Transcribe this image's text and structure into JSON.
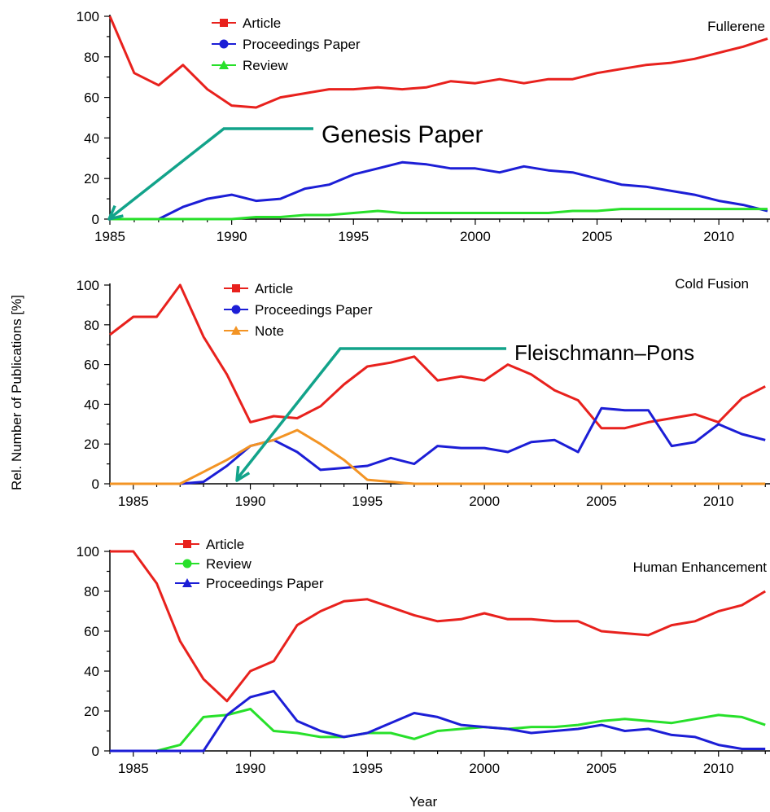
{
  "figure": {
    "ylabel": "Rel. Number of Publications [%]",
    "xlabel": "Year"
  },
  "chart_data": [
    {
      "type": "line",
      "title": "Fullerene",
      "xlim": [
        1985,
        2012
      ],
      "ylim": [
        0,
        100
      ],
      "x_ticks": [
        1985,
        1990,
        1995,
        2000,
        2005,
        2010
      ],
      "y_ticks": [
        0,
        20,
        40,
        60,
        80,
        100
      ],
      "legend_position": "top-left",
      "series": [
        {
          "name": "Article",
          "color": "#e8211d",
          "marker": "square",
          "x": [
            1985,
            1986,
            1987,
            1988,
            1989,
            1990,
            1991,
            1992,
            1993,
            1994,
            1995,
            1996,
            1997,
            1998,
            1999,
            2000,
            2001,
            2002,
            2003,
            2004,
            2005,
            2006,
            2007,
            2008,
            2009,
            2010,
            2011,
            2012
          ],
          "values": [
            100,
            72,
            66,
            76,
            64,
            56,
            55,
            60,
            62,
            64,
            64,
            65,
            64,
            65,
            68,
            67,
            69,
            67,
            69,
            69,
            72,
            74,
            76,
            77,
            79,
            82,
            85,
            89
          ]
        },
        {
          "name": "Proceedings Paper",
          "color": "#1c1ed6",
          "marker": "circle",
          "x": [
            1985,
            1986,
            1987,
            1988,
            1989,
            1990,
            1991,
            1992,
            1993,
            1994,
            1995,
            1996,
            1997,
            1998,
            1999,
            2000,
            2001,
            2002,
            2003,
            2004,
            2005,
            2006,
            2007,
            2008,
            2009,
            2010,
            2011,
            2012
          ],
          "values": [
            0,
            0,
            0,
            6,
            10,
            12,
            9,
            10,
            15,
            17,
            22,
            25,
            28,
            27,
            25,
            25,
            23,
            26,
            24,
            23,
            20,
            17,
            16,
            14,
            12,
            9,
            7,
            4
          ]
        },
        {
          "name": "Review",
          "color": "#27e02a",
          "marker": "triangle",
          "x": [
            1985,
            1986,
            1987,
            1988,
            1989,
            1990,
            1991,
            1992,
            1993,
            1994,
            1995,
            1996,
            1997,
            1998,
            1999,
            2000,
            2001,
            2002,
            2003,
            2004,
            2005,
            2006,
            2007,
            2008,
            2009,
            2010,
            2011,
            2012
          ],
          "values": [
            0,
            0,
            0,
            0,
            0,
            0,
            1,
            1,
            2,
            2,
            3,
            4,
            3,
            3,
            3,
            3,
            3,
            3,
            3,
            4,
            4,
            5,
            5,
            5,
            5,
            5,
            5,
            5
          ]
        }
      ],
      "annotation": {
        "text": "Genesis Paper",
        "target_x": 1985,
        "target_y": 0
      }
    },
    {
      "type": "line",
      "title": "Cold Fusion",
      "xlim": [
        1984,
        2012
      ],
      "ylim": [
        0,
        100
      ],
      "x_ticks": [
        1985,
        1990,
        1995,
        2000,
        2005,
        2010
      ],
      "y_ticks": [
        0,
        20,
        40,
        60,
        80,
        100
      ],
      "legend_position": "top-left",
      "series": [
        {
          "name": "Article",
          "color": "#e8211d",
          "marker": "square",
          "x": [
            1984,
            1985,
            1986,
            1987,
            1988,
            1989,
            1990,
            1991,
            1992,
            1993,
            1994,
            1995,
            1996,
            1997,
            1998,
            1999,
            2000,
            2001,
            2002,
            2003,
            2004,
            2005,
            2006,
            2007,
            2008,
            2009,
            2010,
            2011,
            2012
          ],
          "values": [
            75,
            84,
            84,
            100,
            74,
            55,
            31,
            34,
            33,
            39,
            50,
            59,
            61,
            64,
            52,
            54,
            52,
            60,
            55,
            47,
            42,
            28,
            28,
            31,
            33,
            35,
            31,
            43,
            49
          ]
        },
        {
          "name": "Proceedings Paper",
          "color": "#1c1ed6",
          "marker": "circle",
          "x": [
            1984,
            1985,
            1986,
            1987,
            1988,
            1989,
            1990,
            1991,
            1992,
            1993,
            1994,
            1995,
            1996,
            1997,
            1998,
            1999,
            2000,
            2001,
            2002,
            2003,
            2004,
            2005,
            2006,
            2007,
            2008,
            2009,
            2010,
            2011,
            2012
          ],
          "values": [
            0,
            0,
            0,
            0,
            1,
            9,
            19,
            22,
            16,
            7,
            8,
            9,
            13,
            10,
            19,
            18,
            18,
            16,
            21,
            22,
            16,
            38,
            37,
            37,
            19,
            21,
            30,
            25,
            22
          ]
        },
        {
          "name": "Note",
          "color": "#f39424",
          "marker": "triangle",
          "x": [
            1984,
            1985,
            1986,
            1987,
            1988,
            1989,
            1990,
            1991,
            1992,
            1993,
            1994,
            1995,
            1996,
            1997,
            1998,
            1999,
            2000,
            2001,
            2002,
            2003,
            2004,
            2005,
            2006,
            2007,
            2008,
            2009,
            2010,
            2011,
            2012
          ],
          "values": [
            0,
            0,
            0,
            0,
            6,
            12,
            19,
            22,
            27,
            20,
            12,
            2,
            1,
            0,
            0,
            0,
            0,
            0,
            0,
            0,
            0,
            0,
            0,
            0,
            0,
            0,
            0,
            0,
            0
          ]
        }
      ],
      "annotation": {
        "text": "Fleischmann–Pons",
        "target_x": 1989,
        "target_y": 0
      }
    },
    {
      "type": "line",
      "title": "Human Enhancement",
      "xlim": [
        1984,
        2012
      ],
      "ylim": [
        0,
        100
      ],
      "x_ticks": [
        1985,
        1990,
        1995,
        2000,
        2005,
        2010
      ],
      "y_ticks": [
        0,
        20,
        40,
        60,
        80,
        100
      ],
      "legend_position": "top-left",
      "series": [
        {
          "name": "Article",
          "color": "#e8211d",
          "marker": "square",
          "x": [
            1984,
            1985,
            1986,
            1987,
            1988,
            1989,
            1990,
            1991,
            1992,
            1993,
            1994,
            1995,
            1996,
            1997,
            1998,
            1999,
            2000,
            2001,
            2002,
            2003,
            2004,
            2005,
            2006,
            2007,
            2008,
            2009,
            2010,
            2011,
            2012
          ],
          "values": [
            100,
            100,
            84,
            55,
            36,
            25,
            40,
            45,
            63,
            70,
            75,
            76,
            72,
            68,
            65,
            66,
            69,
            66,
            66,
            65,
            65,
            60,
            59,
            58,
            63,
            65,
            70,
            73,
            80
          ]
        },
        {
          "name": "Review",
          "color": "#27e02a",
          "marker": "circle",
          "x": [
            1984,
            1985,
            1986,
            1987,
            1988,
            1989,
            1990,
            1991,
            1992,
            1993,
            1994,
            1995,
            1996,
            1997,
            1998,
            1999,
            2000,
            2001,
            2002,
            2003,
            2004,
            2005,
            2006,
            2007,
            2008,
            2009,
            2010,
            2011,
            2012
          ],
          "values": [
            0,
            0,
            0,
            3,
            17,
            18,
            21,
            10,
            9,
            7,
            7,
            9,
            9,
            6,
            10,
            11,
            12,
            11,
            12,
            12,
            13,
            15,
            16,
            15,
            14,
            16,
            18,
            17,
            13
          ]
        },
        {
          "name": "Proceedings Paper",
          "color": "#1c1ed6",
          "marker": "triangle",
          "x": [
            1984,
            1985,
            1986,
            1987,
            1988,
            1989,
            1990,
            1991,
            1992,
            1993,
            1994,
            1995,
            1996,
            1997,
            1998,
            1999,
            2000,
            2001,
            2002,
            2003,
            2004,
            2005,
            2006,
            2007,
            2008,
            2009,
            2010,
            2011,
            2012
          ],
          "values": [
            0,
            0,
            0,
            0,
            0,
            18,
            27,
            30,
            15,
            10,
            7,
            9,
            14,
            19,
            17,
            13,
            12,
            11,
            9,
            10,
            11,
            13,
            10,
            11,
            8,
            7,
            3,
            1,
            1
          ]
        }
      ]
    }
  ]
}
